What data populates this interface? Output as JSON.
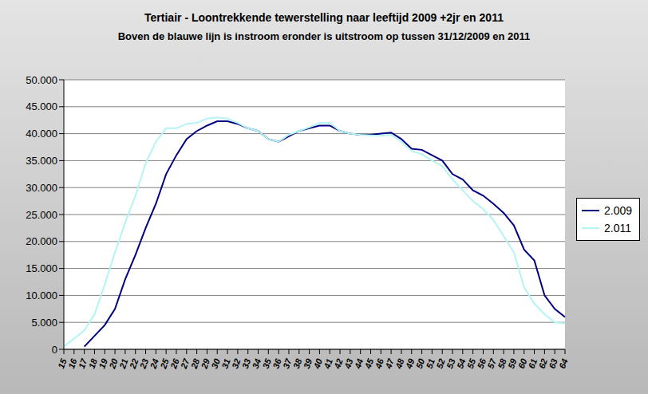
{
  "chart_data": {
    "type": "line",
    "title": "Tertiair - Loontrekkende tewerstelling naar leeftijd 2009 +2jr en 2011",
    "subtitle": "Boven de blauwe lijn is instroom eronder is uitstroom op tussen 31/12/2009 en 2011",
    "categories": [
      "15",
      "16",
      "17",
      "18",
      "19",
      "20",
      "21",
      "22",
      "23",
      "24",
      "25",
      "26",
      "27",
      "28",
      "29",
      "30",
      "31",
      "32",
      "33",
      "34",
      "35",
      "36",
      "37",
      "38",
      "39",
      "40",
      "41",
      "42",
      "43",
      "44",
      "45",
      "46",
      "47",
      "48",
      "49",
      "50",
      "51",
      "52",
      "53",
      "54",
      "55",
      "56",
      "57",
      "58",
      "59",
      "60",
      "61",
      "62",
      "63",
      "64"
    ],
    "series": [
      {
        "name": "2.009",
        "color": "#000080",
        "values": [
          null,
          null,
          500,
          2500,
          4500,
          7500,
          13000,
          17500,
          22500,
          27000,
          32500,
          36000,
          39000,
          40500,
          41500,
          42300,
          42300,
          41800,
          41000,
          40500,
          39000,
          38500,
          39500,
          40500,
          41000,
          41500,
          41500,
          40500,
          40000,
          39800,
          39800,
          40000,
          40200,
          39000,
          37200,
          37000,
          36000,
          35000,
          32500,
          31500,
          29500,
          28500,
          27000,
          25300,
          23000,
          18500,
          16500,
          10000,
          7500,
          6000
        ]
      },
      {
        "name": "2.011",
        "color": "#b4f4f4",
        "values": [
          500,
          2000,
          3500,
          6500,
          12000,
          18000,
          23500,
          28500,
          34500,
          38500,
          41000,
          41000,
          41800,
          42000,
          42800,
          43000,
          42800,
          42000,
          41000,
          40500,
          39000,
          38500,
          39800,
          40500,
          41200,
          42000,
          42000,
          40500,
          40000,
          39800,
          39700,
          39600,
          39800,
          38500,
          36800,
          36200,
          35000,
          34000,
          31500,
          29500,
          27500,
          26000,
          24000,
          21000,
          18000,
          11500,
          8500,
          6500,
          5000,
          4800
        ]
      }
    ],
    "ylim": [
      0,
      50000
    ],
    "yticks": [
      0,
      {
        "value": 5000,
        "label": "5.000"
      },
      {
        "value": 10000,
        "label": "10.000"
      },
      {
        "value": 15000,
        "label": "15.000"
      },
      {
        "value": 20000,
        "label": "20.000"
      },
      {
        "value": 25000,
        "label": "25.000"
      },
      {
        "value": 30000,
        "label": "30.000"
      },
      {
        "value": 35000,
        "label": "35.000"
      },
      {
        "value": 40000,
        "label": "40.000"
      },
      {
        "value": 45000,
        "label": "45.000"
      },
      {
        "value": 50000,
        "label": "50.000"
      }
    ],
    "grid": true,
    "legend": "right"
  }
}
